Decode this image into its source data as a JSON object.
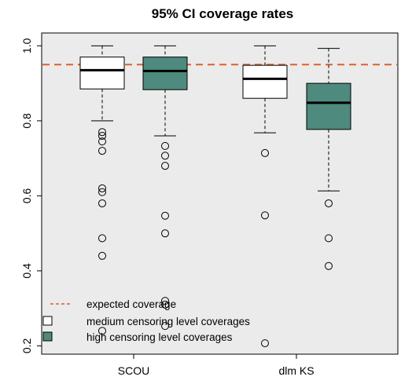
{
  "chart_data": {
    "type": "boxplot",
    "title": "95% CI coverage rates",
    "xlabel": "",
    "ylabel": "",
    "ylim": [
      0.18,
      1.03
    ],
    "y_ticks": [
      0.2,
      0.4,
      0.6,
      0.8,
      1.0
    ],
    "y_tick_labels": [
      "0.2",
      "0.4",
      "0.6",
      "0.8",
      "1.0"
    ],
    "categories": [
      "SCOU",
      "dlm KS"
    ],
    "reference_line": {
      "value": 0.95,
      "label": "expected coverage",
      "color": "#d9622b",
      "style": "dashed"
    },
    "grid": false,
    "legend_position": "bottom-left",
    "series": [
      {
        "name": "medium censoring level coverages",
        "color": "#ffffff",
        "boxes": [
          {
            "category": "SCOU",
            "whisker_low": 0.8,
            "q1": 0.885,
            "median": 0.935,
            "q3": 0.97,
            "whisker_high": 1.0,
            "outliers": [
              0.77,
              0.76,
              0.745,
              0.72,
              0.62,
              0.61,
              0.58,
              0.487,
              0.44,
              0.24
            ]
          },
          {
            "category": "dlm KS",
            "whisker_low": 0.768,
            "q1": 0.86,
            "median": 0.912,
            "q3": 0.948,
            "whisker_high": 1.0,
            "outliers": [
              0.714,
              0.548,
              0.207
            ]
          }
        ]
      },
      {
        "name": "high censoring level coverages",
        "color": "#4e8a7e",
        "boxes": [
          {
            "category": "SCOU",
            "whisker_low": 0.76,
            "q1": 0.883,
            "median": 0.933,
            "q3": 0.97,
            "whisker_high": 1.0,
            "outliers": [
              0.733,
              0.707,
              0.68,
              0.547,
              0.5,
              0.32,
              0.31,
              0.253
            ]
          },
          {
            "category": "dlm KS",
            "whisker_low": 0.613,
            "q1": 0.777,
            "median": 0.848,
            "q3": 0.9,
            "whisker_high": 0.993,
            "outliers": [
              0.58,
              0.487,
              0.413
            ]
          }
        ]
      }
    ]
  }
}
